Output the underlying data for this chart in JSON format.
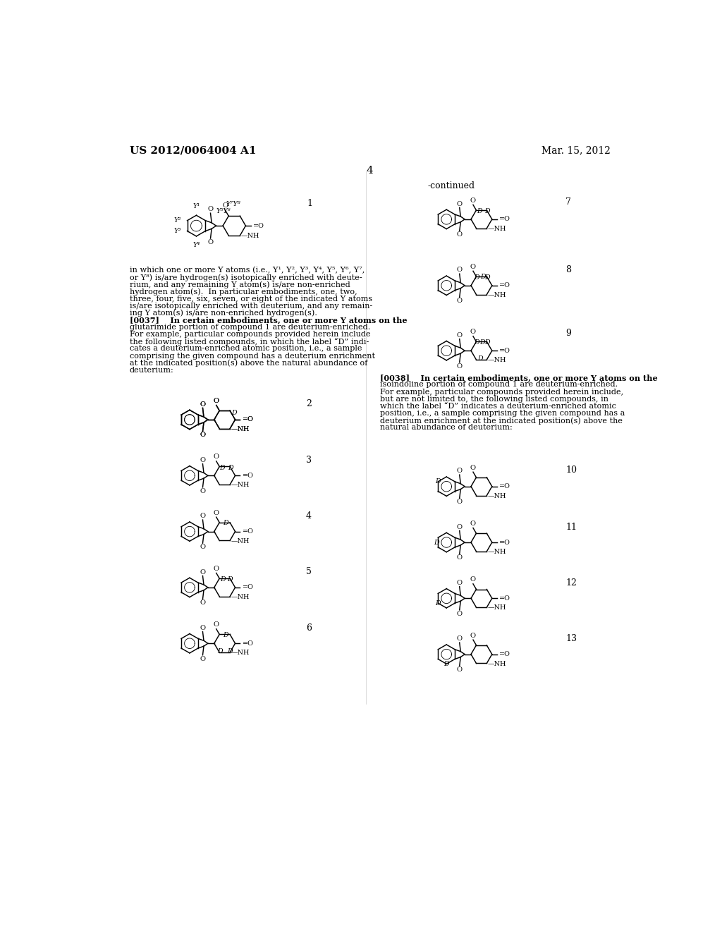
{
  "background_color": "#ffffff",
  "header_left": "US 2012/0064004 A1",
  "header_right": "Mar. 15, 2012",
  "page_number": "4",
  "continued_label": "-continued",
  "text_color": "#000000",
  "body_text_1": [
    "in which one or more Y atoms (i.e., Y¹, Y², Y³, Y⁴, Y⁵, Y⁶, Y⁷,",
    "or Y⁸) is/are hydrogen(s) isotopically enriched with deute-",
    "rium, and any remaining Y atom(s) is/are non-enriched",
    "hydrogen atom(s).  In particular embodiments, one, two,",
    "three, four, five, six, seven, or eight of the indicated Y atoms",
    "is/are isotopically enriched with deuterium, and any remain-",
    "ing Y atom(s) is/are non-enriched hydrogen(s)."
  ],
  "para_0037": [
    "[0037]    In certain embodiments, one or more Y atoms on the",
    "glutarimide portion of compound 1 are deuterium-enriched.",
    "For example, particular compounds provided herein include",
    "the following listed compounds, in which the label “D” indi-",
    "cates a deuterium-enriched atomic position, i.e., a sample",
    "comprising the given compound has a deuterium enrichment",
    "at the indicated position(s) above the natural abundance of",
    "deuterium:"
  ],
  "para_0038": [
    "[0038]    In certain embodiments, one or more Y atoms on the",
    "isoindoline portion of compound 1 are deuterium-enriched.",
    "For example, particular compounds provided herein include,",
    "but are not limited to, the following listed compounds, in",
    "which the label “D” indicates a deuterium-enriched atomic",
    "position, i.e., a sample comprising the given compound has a",
    "deuterium enrichment at the indicated position(s) above the",
    "natural abundance of deuterium:"
  ]
}
